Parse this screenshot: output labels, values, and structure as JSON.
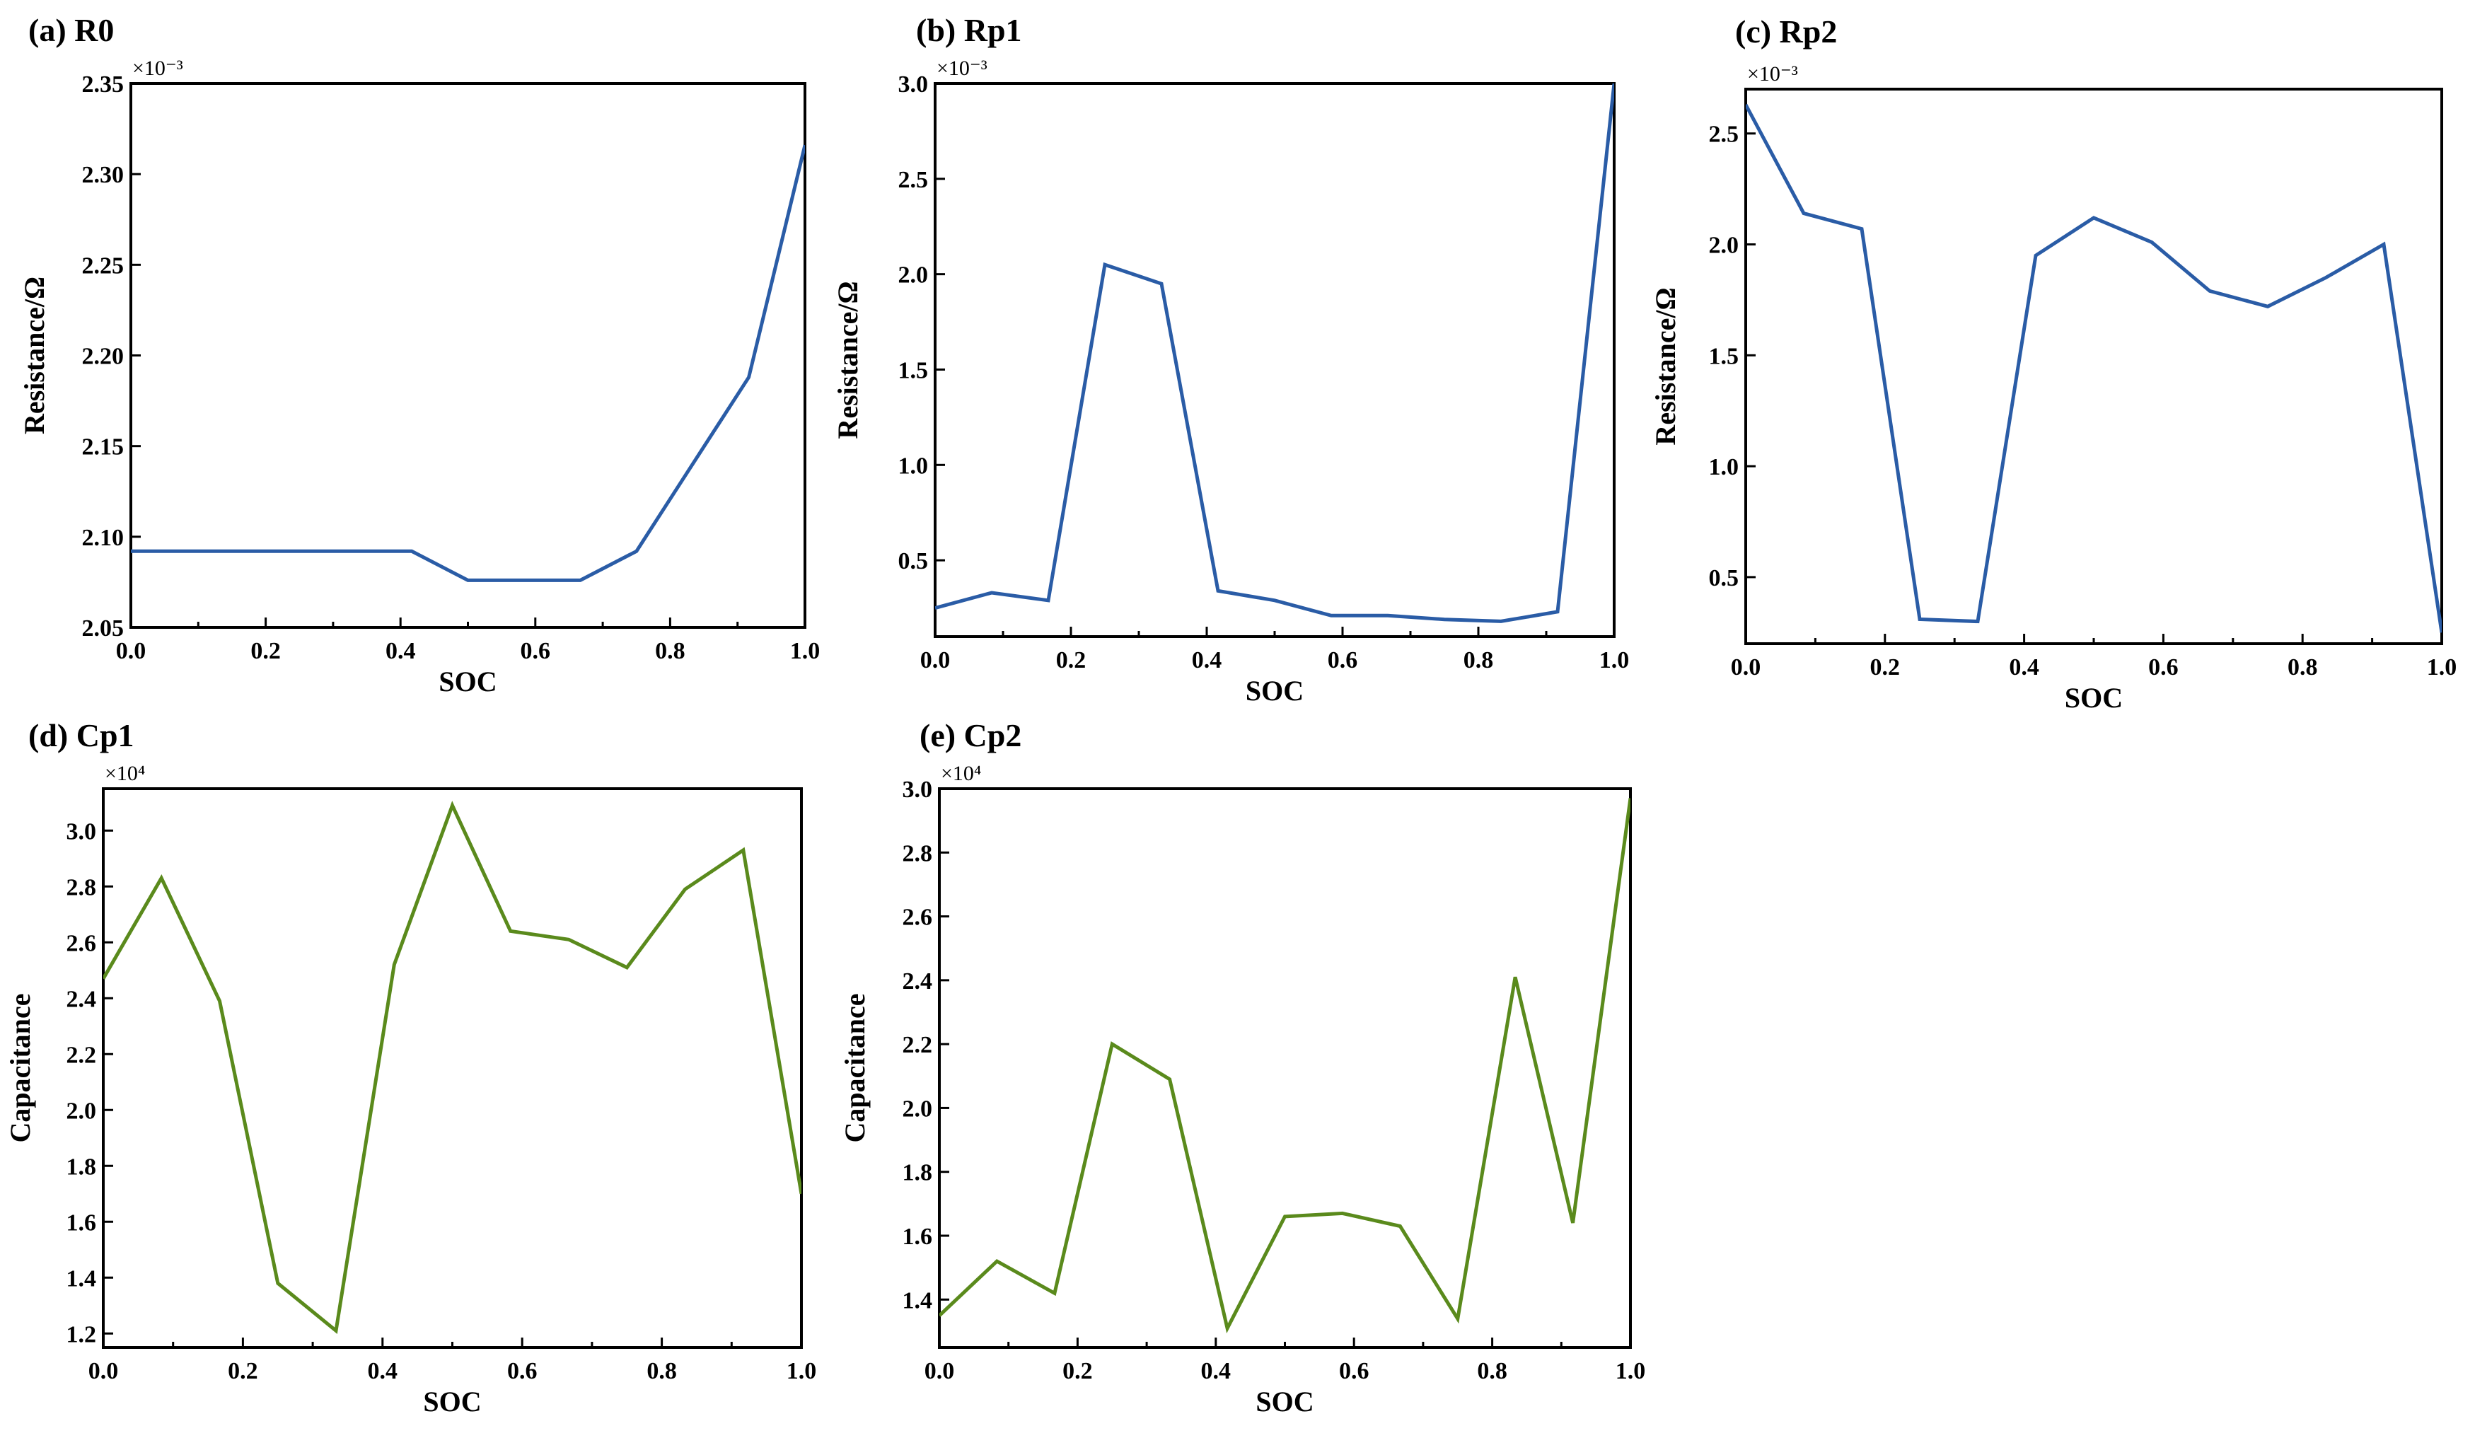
{
  "colors": {
    "resistance": "#2a5ca6",
    "capacitance": "#5a8a1c",
    "axis": "#000000"
  },
  "chart_data": [
    {
      "type": "line",
      "title": "(a)  R0",
      "xlabel": "SOC",
      "ylabel": "Resistance/Ω",
      "multiplier": "×10⁻³",
      "xlim": [
        0,
        1
      ],
      "ylim": [
        2.05,
        2.35
      ],
      "xticks": [
        0,
        0.2,
        0.4,
        0.6,
        0.8,
        1.0
      ],
      "xtick_labels": [
        "0.0",
        "0.2",
        "0.4",
        "0.6",
        "0.8",
        "1.0"
      ],
      "yticks": [
        2.05,
        2.1,
        2.15,
        2.2,
        2.25,
        2.3,
        2.35
      ],
      "ytick_labels": [
        "2.05",
        "2.10",
        "2.15",
        "2.20",
        "2.25",
        "2.30",
        "2.35"
      ],
      "color_key": "resistance",
      "x": [
        0,
        0.0833,
        0.1667,
        0.25,
        0.3333,
        0.4167,
        0.5,
        0.5833,
        0.6667,
        0.75,
        0.8333,
        0.9167,
        1.0
      ],
      "y": [
        2.092,
        2.092,
        2.092,
        2.092,
        2.092,
        2.092,
        2.076,
        2.076,
        2.076,
        2.092,
        2.14,
        2.188,
        2.316
      ]
    },
    {
      "type": "line",
      "title": "(b)  Rp1",
      "xlabel": "SOC",
      "ylabel": "Resistance/Ω",
      "multiplier": "×10⁻³",
      "xlim": [
        0,
        1
      ],
      "ylim": [
        0.1,
        3.0
      ],
      "xticks": [
        0,
        0.2,
        0.4,
        0.6,
        0.8,
        1.0
      ],
      "xtick_labels": [
        "0.0",
        "0.2",
        "0.4",
        "0.6",
        "0.8",
        "1.0"
      ],
      "yticks": [
        0.5,
        1.0,
        1.5,
        2.0,
        2.5,
        3.0
      ],
      "ytick_labels": [
        "0.5",
        "1.0",
        "1.5",
        "2.0",
        "2.5",
        "3.0"
      ],
      "color_key": "resistance",
      "x": [
        0,
        0.0833,
        0.1667,
        0.25,
        0.3333,
        0.4167,
        0.5,
        0.5833,
        0.6667,
        0.75,
        0.8333,
        0.9167,
        1.0
      ],
      "y": [
        0.25,
        0.33,
        0.29,
        2.05,
        1.95,
        0.34,
        0.29,
        0.21,
        0.21,
        0.19,
        0.18,
        0.23,
        3.0
      ]
    },
    {
      "type": "line",
      "title": "(c)  Rp2",
      "xlabel": "SOC",
      "ylabel": "Resistance/Ω",
      "multiplier": "×10⁻³",
      "xlim": [
        0,
        1
      ],
      "ylim": [
        0.2,
        2.7
      ],
      "xticks": [
        0,
        0.2,
        0.4,
        0.6,
        0.8,
        1.0
      ],
      "xtick_labels": [
        "0.0",
        "0.2",
        "0.4",
        "0.6",
        "0.8",
        "1.0"
      ],
      "yticks": [
        0.5,
        1.0,
        1.5,
        2.0,
        2.5
      ],
      "ytick_labels": [
        "0.5",
        "1.0",
        "1.5",
        "2.0",
        "2.5"
      ],
      "color_key": "resistance",
      "x": [
        0,
        0.0833,
        0.1667,
        0.25,
        0.3333,
        0.4167,
        0.5,
        0.5833,
        0.6667,
        0.75,
        0.8333,
        0.9167,
        1.0
      ],
      "y": [
        2.63,
        2.14,
        2.07,
        0.31,
        0.3,
        1.95,
        2.12,
        2.01,
        1.79,
        1.72,
        1.85,
        2.0,
        0.25
      ]
    },
    {
      "type": "line",
      "title": "(d)  Cp1",
      "xlabel": "SOC",
      "ylabel": "Capacitance",
      "multiplier": "×10⁴",
      "xlim": [
        0,
        1
      ],
      "ylim": [
        1.15,
        3.15
      ],
      "xticks": [
        0,
        0.2,
        0.4,
        0.6,
        0.8,
        1.0
      ],
      "xtick_labels": [
        "0.0",
        "0.2",
        "0.4",
        "0.6",
        "0.8",
        "1.0"
      ],
      "yticks": [
        1.2,
        1.4,
        1.6,
        1.8,
        2.0,
        2.2,
        2.4,
        2.6,
        2.8,
        3.0
      ],
      "ytick_labels": [
        "1.2",
        "1.4",
        "1.6",
        "1.8",
        "2.0",
        "2.2",
        "2.4",
        "2.6",
        "2.8",
        "3.0"
      ],
      "color_key": "capacitance",
      "x": [
        0,
        0.0833,
        0.1667,
        0.25,
        0.3333,
        0.4167,
        0.5,
        0.5833,
        0.6667,
        0.75,
        0.8333,
        0.9167,
        1.0
      ],
      "y": [
        2.47,
        2.83,
        2.39,
        1.38,
        1.21,
        2.52,
        3.09,
        2.64,
        2.61,
        2.51,
        2.79,
        2.93,
        1.7
      ]
    },
    {
      "type": "line",
      "title": "(e)  Cp2",
      "xlabel": "SOC",
      "ylabel": "Capacitance",
      "multiplier": "×10⁴",
      "xlim": [
        0,
        1
      ],
      "ylim": [
        1.25,
        3.0
      ],
      "xticks": [
        0,
        0.2,
        0.4,
        0.6,
        0.8,
        1.0
      ],
      "xtick_labels": [
        "0.0",
        "0.2",
        "0.4",
        "0.6",
        "0.8",
        "1.0"
      ],
      "yticks": [
        1.4,
        1.6,
        1.8,
        2.0,
        2.2,
        2.4,
        2.6,
        2.8,
        3.0
      ],
      "ytick_labels": [
        "1.4",
        "1.6",
        "1.8",
        "2.0",
        "2.2",
        "2.4",
        "2.6",
        "2.8",
        "3.0"
      ],
      "color_key": "capacitance",
      "x": [
        0,
        0.0833,
        0.1667,
        0.25,
        0.3333,
        0.4167,
        0.5,
        0.5833,
        0.6667,
        0.75,
        0.8333,
        0.9167,
        1.0
      ],
      "y": [
        1.35,
        1.52,
        1.42,
        2.2,
        2.09,
        1.31,
        1.66,
        1.67,
        1.63,
        1.34,
        2.41,
        1.64,
        2.97
      ]
    }
  ]
}
